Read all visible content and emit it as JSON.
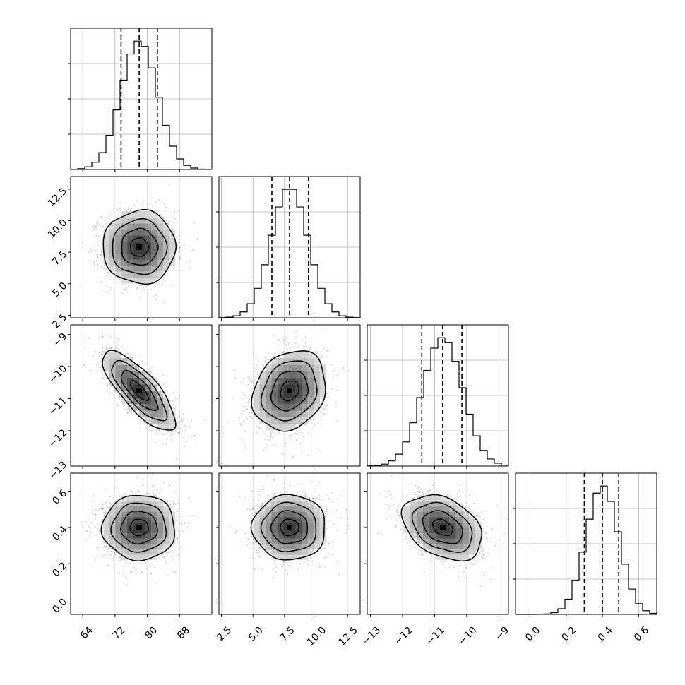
{
  "chart_data": {
    "type": "corner",
    "grid": true,
    "colors": {
      "line": "#000000",
      "grid": "#b0b0b0",
      "point": "#7f7f7f",
      "frame": "#000000"
    },
    "parameters": [
      {
        "range": [
          61,
          96
        ],
        "mean": 78.0,
        "std": 4.5,
        "quantiles": [
          73.5,
          78.0,
          82.5
        ],
        "ticks": [
          64,
          72,
          80,
          88
        ],
        "tick_labels": [
          "64",
          "72",
          "80",
          "88"
        ]
      },
      {
        "range": [
          2.3,
          13.5
        ],
        "mean": 7.9,
        "std": 1.45,
        "quantiles": [
          6.5,
          7.9,
          9.4
        ],
        "ticks": [
          2.5,
          5.0,
          7.5,
          10.0,
          12.5
        ],
        "tick_labels": [
          "2.5",
          "5.0",
          "7.5",
          "10.0",
          "12.5"
        ]
      },
      {
        "range": [
          -13.1,
          -8.7
        ],
        "mean": -10.75,
        "std": 0.62,
        "quantiles": [
          -11.4,
          -10.75,
          -10.15
        ],
        "ticks": [
          -13,
          -12,
          -11,
          -10,
          -9
        ],
        "tick_labels": [
          "−13",
          "−12",
          "−11",
          "−10",
          "−9"
        ]
      },
      {
        "range": [
          -0.08,
          0.7
        ],
        "mean": 0.4,
        "std": 0.09,
        "quantiles": [
          0.3,
          0.4,
          0.49
        ],
        "ticks": [
          0.0,
          0.2,
          0.4,
          0.6
        ],
        "tick_labels": [
          "0.0",
          "0.2",
          "0.4",
          "0.6"
        ]
      }
    ],
    "correlations": [
      {
        "pair": [
          0,
          1
        ],
        "rho": 0.0
      },
      {
        "pair": [
          0,
          2
        ],
        "rho": -0.78
      },
      {
        "pair": [
          1,
          2
        ],
        "rho": 0.2
      },
      {
        "pair": [
          0,
          3
        ],
        "rho": 0.0
      },
      {
        "pair": [
          1,
          3
        ],
        "rho": 0.0
      },
      {
        "pair": [
          2,
          3
        ],
        "rho": -0.35
      }
    ],
    "contour_levels_sigma": [
      0.5,
      1.0,
      1.5,
      2.0
    ],
    "histogram_bins": 20
  }
}
